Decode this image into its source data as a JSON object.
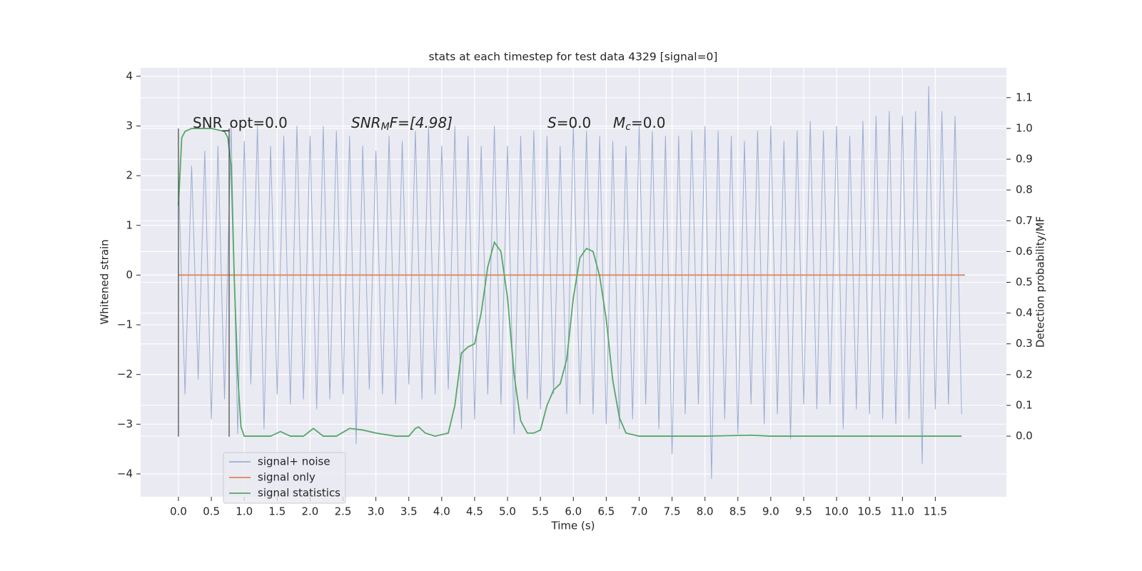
{
  "chart_data": {
    "type": "line",
    "title": "stats at each timestep for test data 4329 [signal=0]",
    "xlabel": "Time (s)",
    "ylabel": "Whitened strain",
    "y2label": "Detection probability/MF",
    "xlim": [
      -0.575,
      12.58
    ],
    "ylim": [
      -4.46,
      4.17
    ],
    "y2lim": [
      -0.197,
      1.197
    ],
    "xticks": [
      {
        "value": 0,
        "label": "0.0"
      },
      0.5,
      {
        "value": 1,
        "label": "1.0"
      },
      1.5,
      {
        "value": 2,
        "label": "2.0"
      },
      2.5,
      {
        "value": 3,
        "label": "3.0"
      },
      3.5,
      {
        "value": 4,
        "label": "4.0"
      },
      4.5,
      {
        "value": 5,
        "label": "5.0"
      },
      5.5,
      {
        "value": 6,
        "label": "6.0"
      },
      6.5,
      {
        "value": 7,
        "label": "7.0"
      },
      7.5,
      {
        "value": 8,
        "label": "8.0"
      },
      8.5,
      {
        "value": 9,
        "label": "9.0"
      },
      9.5,
      {
        "value": 10,
        "label": "10.0"
      },
      10.5,
      {
        "value": 11,
        "label": "11.0"
      },
      11.5
    ],
    "yticks": [
      {
        "value": -4,
        "label": "−4"
      },
      {
        "value": -3,
        "label": "−3"
      },
      {
        "value": -2,
        "label": "−2"
      },
      {
        "value": -1,
        "label": "−1"
      },
      0,
      1,
      2,
      3,
      4
    ],
    "y2ticks": [
      {
        "value": 0,
        "label": "0.0"
      },
      0.1,
      0.2,
      0.3,
      0.4,
      0.5,
      0.6,
      0.7,
      0.8,
      0.9,
      {
        "value": 1,
        "label": "1.0"
      },
      1.1
    ],
    "grid": true,
    "legend": "lower left",
    "series": [
      {
        "name": "signal+ noise",
        "color": "#9aaed3",
        "x": [
          0.0,
          0.1,
          0.2,
          0.3,
          0.4,
          0.5,
          0.6,
          0.7,
          0.8,
          0.9,
          1.0,
          1.1,
          1.2,
          1.3,
          1.4,
          1.5,
          1.6,
          1.7,
          1.8,
          1.9,
          2.0,
          2.1,
          2.2,
          2.3,
          2.4,
          2.5,
          2.6,
          2.7,
          2.8,
          2.9,
          3.0,
          3.1,
          3.2,
          3.3,
          3.4,
          3.5,
          3.6,
          3.7,
          3.8,
          3.9,
          4.0,
          4.1,
          4.2,
          4.3,
          4.4,
          4.5,
          4.6,
          4.7,
          4.8,
          4.9,
          5.0,
          5.1,
          5.2,
          5.3,
          5.4,
          5.5,
          5.6,
          5.7,
          5.8,
          5.9,
          6.0,
          6.1,
          6.2,
          6.3,
          6.4,
          6.5,
          6.6,
          6.7,
          6.8,
          6.9,
          7.0,
          7.1,
          7.2,
          7.3,
          7.4,
          7.5,
          7.6,
          7.7,
          7.8,
          7.9,
          8.0,
          8.1,
          8.2,
          8.3,
          8.4,
          8.5,
          8.6,
          8.7,
          8.8,
          8.9,
          9.0,
          9.1,
          9.2,
          9.3,
          9.4,
          9.5,
          9.6,
          9.7,
          9.8,
          9.9,
          10.0,
          10.1,
          10.2,
          10.3,
          10.4,
          10.5,
          10.6,
          10.7,
          10.8,
          10.9,
          11.0,
          11.1,
          11.2,
          11.3,
          11.4,
          11.5,
          11.6,
          11.7,
          11.8,
          11.9
        ],
        "values": [
          2.0,
          -2.4,
          2.2,
          -2.1,
          2.5,
          -2.9,
          2.6,
          -2.5,
          3.0,
          -3.2,
          2.7,
          -2.2,
          3.0,
          -3.1,
          2.6,
          -2.4,
          2.8,
          -2.6,
          3.0,
          -2.5,
          2.8,
          -2.7,
          3.0,
          -2.5,
          2.9,
          -2.4,
          2.8,
          -3.4,
          2.6,
          -2.3,
          2.5,
          -2.4,
          2.8,
          -2.6,
          2.7,
          -2.2,
          2.9,
          -2.5,
          3.0,
          -2.4,
          2.6,
          -2.3,
          3.0,
          -3.1,
          2.8,
          -2.9,
          2.6,
          -2.4,
          3.0,
          -2.6,
          2.6,
          -3.2,
          2.8,
          -2.5,
          2.9,
          -2.7,
          2.8,
          -2.4,
          2.6,
          -2.8,
          3.0,
          -2.6,
          2.9,
          -2.8,
          2.8,
          -3.0,
          2.7,
          -3.1,
          2.6,
          -2.9,
          3.0,
          -2.6,
          2.9,
          -3.1,
          2.8,
          -3.6,
          2.8,
          -2.8,
          2.9,
          -2.6,
          3.0,
          -4.1,
          2.9,
          -2.9,
          2.8,
          -3.2,
          2.7,
          -2.6,
          2.9,
          -3.0,
          3.0,
          -2.8,
          2.7,
          -3.3,
          2.9,
          -2.6,
          3.1,
          -2.7,
          2.9,
          -2.6,
          3.0,
          -3.1,
          2.8,
          -2.7,
          3.1,
          -2.8,
          3.2,
          -2.9,
          3.3,
          -3.0,
          3.2,
          -2.9,
          3.3,
          -3.8,
          3.8,
          -2.7,
          3.3,
          -2.6,
          3.2,
          -2.8
        ]
      },
      {
        "name": "signal only",
        "color": "#dd8452",
        "x": [
          0.0,
          11.95
        ],
        "values": [
          0,
          0
        ]
      },
      {
        "name": "signal statistics",
        "color": "#55a868",
        "axis": "y2",
        "x": [
          0,
          0.05,
          0.1,
          0.2,
          0.5,
          0.7,
          0.75,
          0.8,
          0.85,
          0.9,
          0.95,
          1.0,
          1.4,
          1.55,
          1.7,
          1.9,
          2.05,
          2.2,
          2.4,
          2.6,
          2.8,
          3.0,
          3.3,
          3.5,
          3.6,
          3.65,
          3.75,
          3.9,
          4.1,
          4.2,
          4.3,
          4.4,
          4.5,
          4.6,
          4.7,
          4.8,
          4.9,
          5.0,
          5.1,
          5.2,
          5.3,
          5.4,
          5.5,
          5.6,
          5.7,
          5.8,
          5.9,
          6.0,
          6.1,
          6.2,
          6.3,
          6.4,
          6.5,
          6.6,
          6.7,
          6.8,
          7.0,
          8.0,
          8.7,
          9.0,
          11.9
        ],
        "values": [
          0.75,
          0.97,
          0.99,
          1.0,
          1.0,
          0.99,
          0.97,
          0.88,
          0.5,
          0.2,
          0.03,
          0.0,
          0.0,
          0.015,
          0.0,
          0.0,
          0.025,
          0.0,
          0.0,
          0.025,
          0.02,
          0.01,
          0.0,
          0.0,
          0.025,
          0.03,
          0.01,
          0.0,
          0.01,
          0.1,
          0.27,
          0.29,
          0.3,
          0.4,
          0.55,
          0.63,
          0.6,
          0.45,
          0.2,
          0.05,
          0.01,
          0.01,
          0.02,
          0.1,
          0.15,
          0.17,
          0.25,
          0.45,
          0.58,
          0.61,
          0.6,
          0.52,
          0.38,
          0.18,
          0.06,
          0.01,
          0.0,
          0.0,
          0.003,
          0.0,
          0.0
        ]
      }
    ],
    "vlines": [
      0,
      0.77
    ],
    "vline_range": [
      -3.25,
      2.95
    ],
    "annotations": [
      [
        "SNR_opt=0.0"
      ],
      [
        "SNR",
        "M",
        "F=[4.98]"
      ],
      [
        "S",
        "=0.0"
      ],
      [
        "M",
        "c",
        "=0.0"
      ]
    ]
  }
}
